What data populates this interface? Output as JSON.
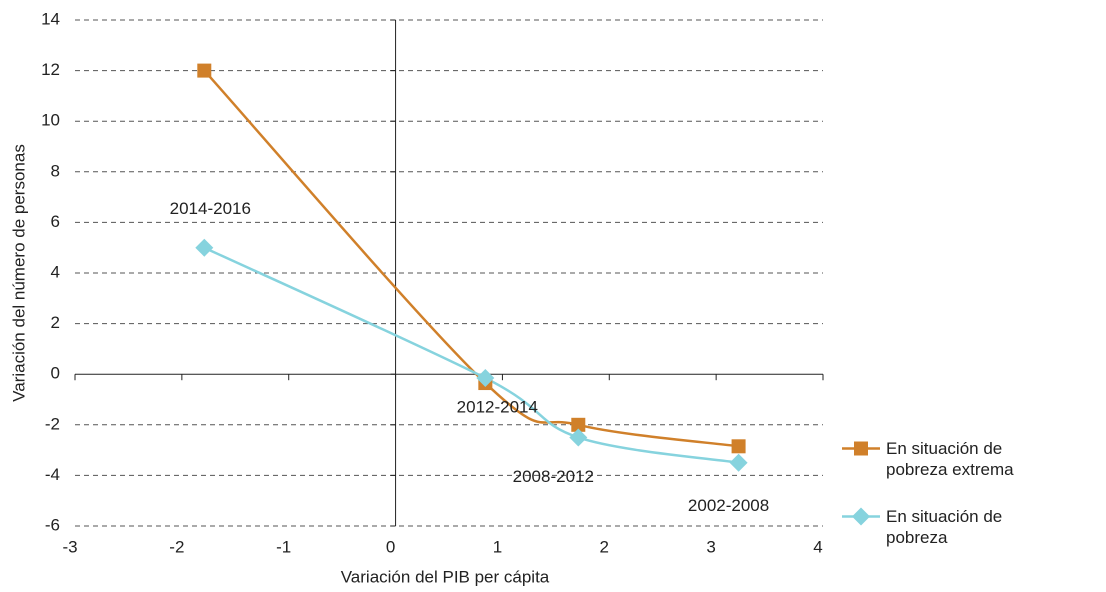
{
  "chart_data": {
    "type": "line",
    "xlabel": "Variación del PIB per cápita",
    "ylabel": "Variación del número de personas",
    "x": [
      -1.79,
      0.84,
      1.71,
      3.21
    ],
    "point_labels": [
      "2014-2016",
      "2012-2014",
      "2008-2012",
      "2002-2008"
    ],
    "series": [
      {
        "name": "En situación de pobreza extrema",
        "color": "#d0802a",
        "marker": "square",
        "values": [
          12,
          -0.35,
          -2.0,
          -2.85
        ]
      },
      {
        "name": "En situación de pobreza",
        "color": "#86d3de",
        "marker": "diamond",
        "values": [
          5.0,
          -0.15,
          -2.5,
          -3.5
        ]
      }
    ],
    "xlim": [
      -3,
      4
    ],
    "xticks": [
      -3,
      -2,
      -1,
      0,
      1,
      2,
      3,
      4
    ],
    "ylim": [
      -6,
      14
    ],
    "yticks": [
      -6,
      -4,
      -2,
      0,
      2,
      4,
      6,
      8,
      10,
      12,
      14
    ],
    "grid": true
  }
}
